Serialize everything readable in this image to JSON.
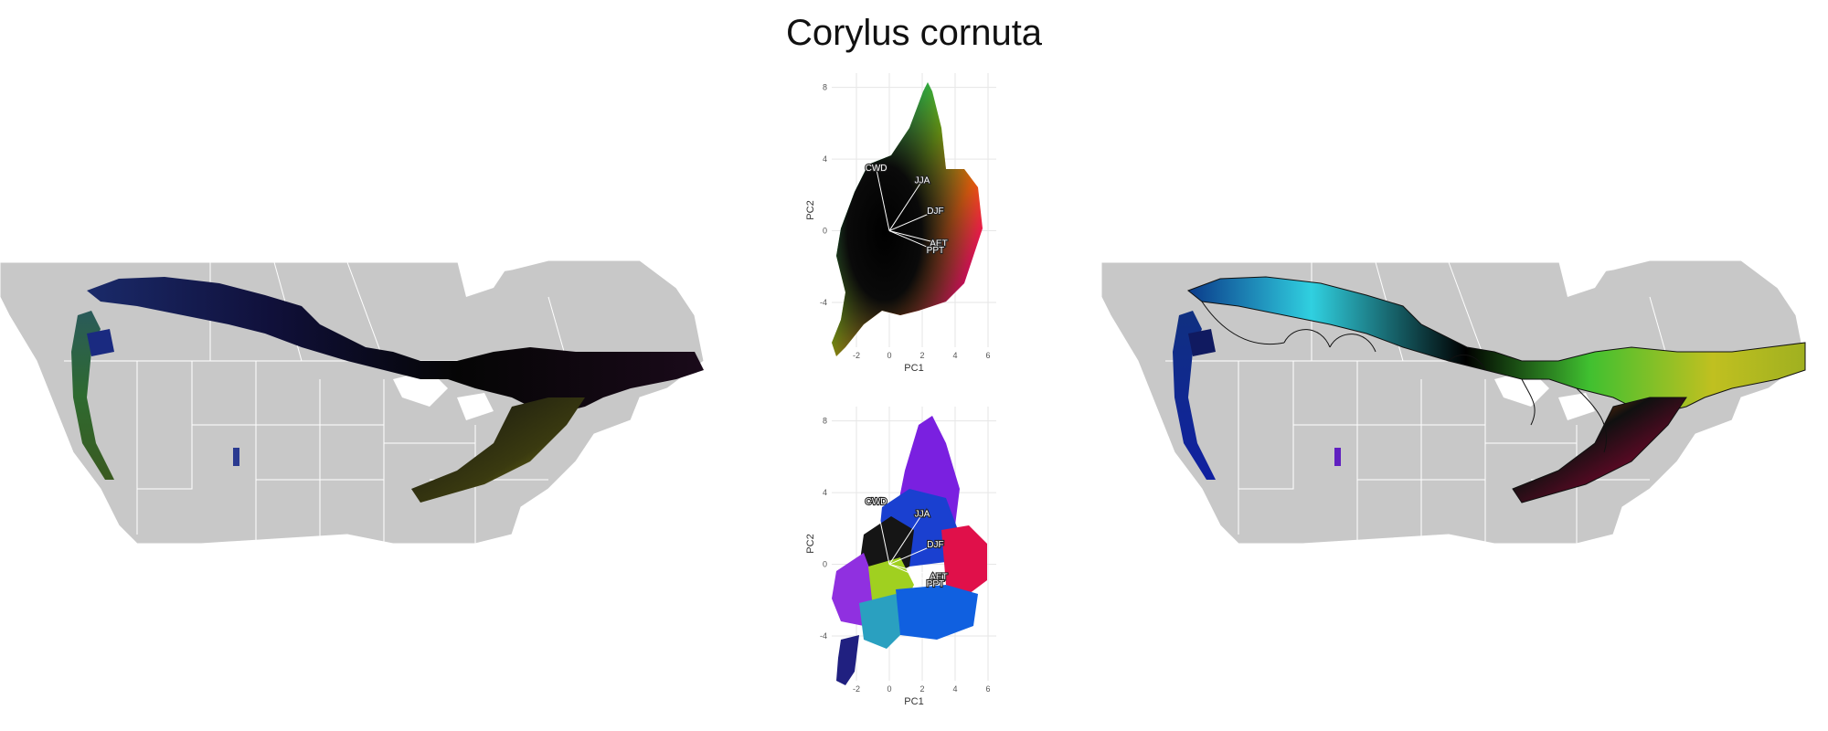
{
  "title": "Corylus cornuta",
  "chart_data": [
    {
      "type": "map",
      "panel": "left-map",
      "description_colors": {
        "land": "#c8c8c8",
        "borders": "#ffffff"
      }
    },
    {
      "type": "scatter",
      "panel": "pca-top",
      "xlabel": "PC1",
      "ylabel": "PC2",
      "xlim": [
        -3.5,
        6.5
      ],
      "ylim": [
        -6.5,
        8.8
      ],
      "xticks": [
        -2,
        0,
        2,
        4,
        6
      ],
      "yticks": [
        -4,
        0,
        4,
        8
      ],
      "vectors": [
        {
          "label": "CWD",
          "x": -0.8,
          "y": 3.5
        },
        {
          "label": "JJA",
          "x": 2.0,
          "y": 2.8
        },
        {
          "label": "DJF",
          "x": 2.8,
          "y": 1.1
        },
        {
          "label": "AET",
          "x": 3.0,
          "y": -0.7
        },
        {
          "label": "PPT",
          "x": 2.8,
          "y": -1.1
        }
      ]
    },
    {
      "type": "scatter",
      "panel": "pca-bottom",
      "xlabel": "PC1",
      "ylabel": "PC2",
      "xlim": [
        -3.5,
        6.5
      ],
      "ylim": [
        -6.5,
        8.8
      ],
      "xticks": [
        -2,
        0,
        2,
        4,
        6
      ],
      "yticks": [
        -4,
        0,
        4,
        8
      ],
      "vectors": [
        {
          "label": "CWD",
          "x": -0.8,
          "y": 3.5
        },
        {
          "label": "JJA",
          "x": 2.0,
          "y": 2.8
        },
        {
          "label": "DJF",
          "x": 2.8,
          "y": 1.1
        },
        {
          "label": "AET",
          "x": 3.0,
          "y": -0.7
        },
        {
          "label": "PPT",
          "x": 2.8,
          "y": -1.1
        }
      ]
    },
    {
      "type": "map",
      "panel": "right-map",
      "description_colors": {
        "land": "#c8c8c8",
        "borders": "#ffffff"
      }
    }
  ]
}
